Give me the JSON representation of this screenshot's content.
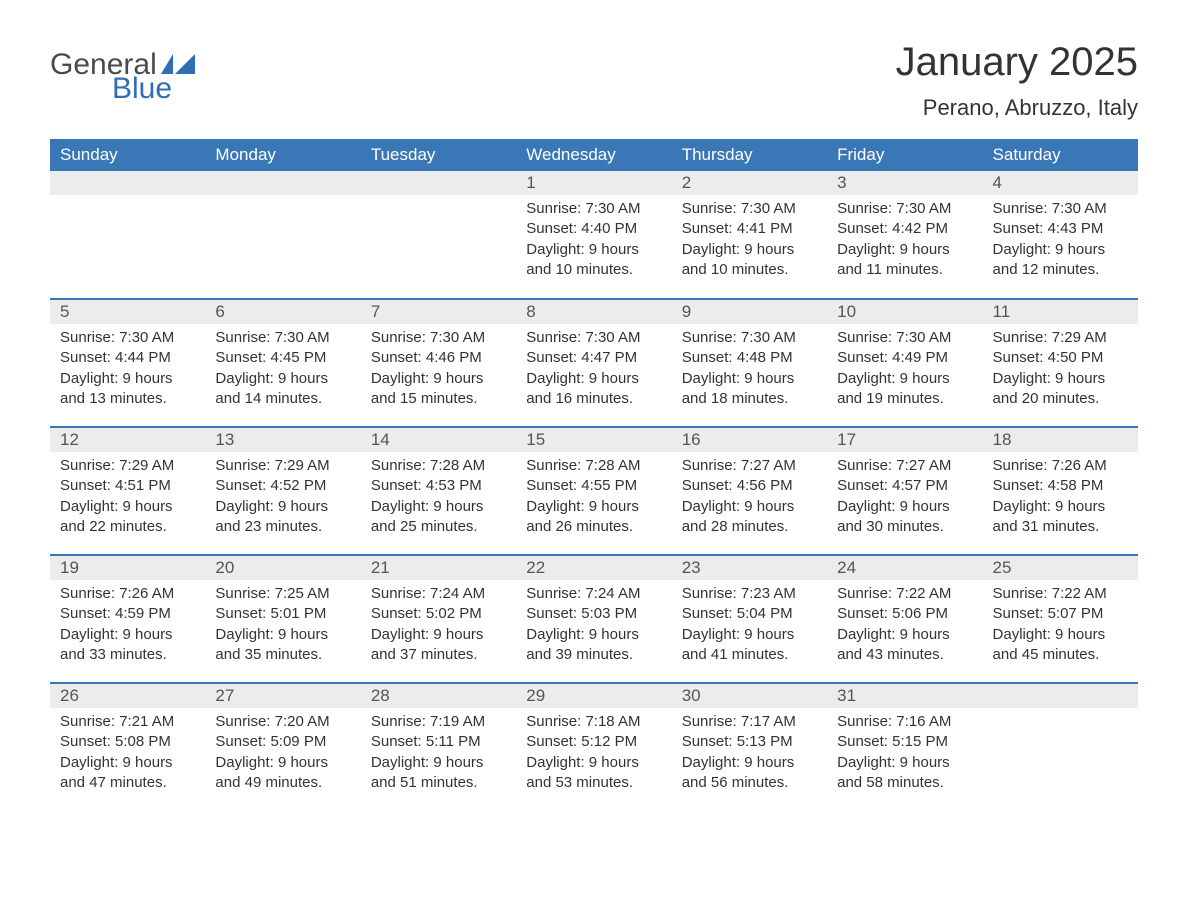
{
  "logo": {
    "text1": "General",
    "text2": "Blue"
  },
  "title": "January 2025",
  "location": "Perano, Abruzzo, Italy",
  "colors": {
    "header_bg": "#3a77b6",
    "header_text": "#ffffff",
    "daynum_bg": "#ececec",
    "border": "#3a77b6",
    "logo_blue": "#2f6eb0",
    "logo_gray": "#4a4a4a"
  },
  "weekdays": [
    "Sunday",
    "Monday",
    "Tuesday",
    "Wednesday",
    "Thursday",
    "Friday",
    "Saturday"
  ],
  "weeks": [
    [
      null,
      null,
      null,
      {
        "d": "1",
        "sr": "Sunrise: 7:30 AM",
        "ss": "Sunset: 4:40 PM",
        "dl1": "Daylight: 9 hours",
        "dl2": "and 10 minutes."
      },
      {
        "d": "2",
        "sr": "Sunrise: 7:30 AM",
        "ss": "Sunset: 4:41 PM",
        "dl1": "Daylight: 9 hours",
        "dl2": "and 10 minutes."
      },
      {
        "d": "3",
        "sr": "Sunrise: 7:30 AM",
        "ss": "Sunset: 4:42 PM",
        "dl1": "Daylight: 9 hours",
        "dl2": "and 11 minutes."
      },
      {
        "d": "4",
        "sr": "Sunrise: 7:30 AM",
        "ss": "Sunset: 4:43 PM",
        "dl1": "Daylight: 9 hours",
        "dl2": "and 12 minutes."
      }
    ],
    [
      {
        "d": "5",
        "sr": "Sunrise: 7:30 AM",
        "ss": "Sunset: 4:44 PM",
        "dl1": "Daylight: 9 hours",
        "dl2": "and 13 minutes."
      },
      {
        "d": "6",
        "sr": "Sunrise: 7:30 AM",
        "ss": "Sunset: 4:45 PM",
        "dl1": "Daylight: 9 hours",
        "dl2": "and 14 minutes."
      },
      {
        "d": "7",
        "sr": "Sunrise: 7:30 AM",
        "ss": "Sunset: 4:46 PM",
        "dl1": "Daylight: 9 hours",
        "dl2": "and 15 minutes."
      },
      {
        "d": "8",
        "sr": "Sunrise: 7:30 AM",
        "ss": "Sunset: 4:47 PM",
        "dl1": "Daylight: 9 hours",
        "dl2": "and 16 minutes."
      },
      {
        "d": "9",
        "sr": "Sunrise: 7:30 AM",
        "ss": "Sunset: 4:48 PM",
        "dl1": "Daylight: 9 hours",
        "dl2": "and 18 minutes."
      },
      {
        "d": "10",
        "sr": "Sunrise: 7:30 AM",
        "ss": "Sunset: 4:49 PM",
        "dl1": "Daylight: 9 hours",
        "dl2": "and 19 minutes."
      },
      {
        "d": "11",
        "sr": "Sunrise: 7:29 AM",
        "ss": "Sunset: 4:50 PM",
        "dl1": "Daylight: 9 hours",
        "dl2": "and 20 minutes."
      }
    ],
    [
      {
        "d": "12",
        "sr": "Sunrise: 7:29 AM",
        "ss": "Sunset: 4:51 PM",
        "dl1": "Daylight: 9 hours",
        "dl2": "and 22 minutes."
      },
      {
        "d": "13",
        "sr": "Sunrise: 7:29 AM",
        "ss": "Sunset: 4:52 PM",
        "dl1": "Daylight: 9 hours",
        "dl2": "and 23 minutes."
      },
      {
        "d": "14",
        "sr": "Sunrise: 7:28 AM",
        "ss": "Sunset: 4:53 PM",
        "dl1": "Daylight: 9 hours",
        "dl2": "and 25 minutes."
      },
      {
        "d": "15",
        "sr": "Sunrise: 7:28 AM",
        "ss": "Sunset: 4:55 PM",
        "dl1": "Daylight: 9 hours",
        "dl2": "and 26 minutes."
      },
      {
        "d": "16",
        "sr": "Sunrise: 7:27 AM",
        "ss": "Sunset: 4:56 PM",
        "dl1": "Daylight: 9 hours",
        "dl2": "and 28 minutes."
      },
      {
        "d": "17",
        "sr": "Sunrise: 7:27 AM",
        "ss": "Sunset: 4:57 PM",
        "dl1": "Daylight: 9 hours",
        "dl2": "and 30 minutes."
      },
      {
        "d": "18",
        "sr": "Sunrise: 7:26 AM",
        "ss": "Sunset: 4:58 PM",
        "dl1": "Daylight: 9 hours",
        "dl2": "and 31 minutes."
      }
    ],
    [
      {
        "d": "19",
        "sr": "Sunrise: 7:26 AM",
        "ss": "Sunset: 4:59 PM",
        "dl1": "Daylight: 9 hours",
        "dl2": "and 33 minutes."
      },
      {
        "d": "20",
        "sr": "Sunrise: 7:25 AM",
        "ss": "Sunset: 5:01 PM",
        "dl1": "Daylight: 9 hours",
        "dl2": "and 35 minutes."
      },
      {
        "d": "21",
        "sr": "Sunrise: 7:24 AM",
        "ss": "Sunset: 5:02 PM",
        "dl1": "Daylight: 9 hours",
        "dl2": "and 37 minutes."
      },
      {
        "d": "22",
        "sr": "Sunrise: 7:24 AM",
        "ss": "Sunset: 5:03 PM",
        "dl1": "Daylight: 9 hours",
        "dl2": "and 39 minutes."
      },
      {
        "d": "23",
        "sr": "Sunrise: 7:23 AM",
        "ss": "Sunset: 5:04 PM",
        "dl1": "Daylight: 9 hours",
        "dl2": "and 41 minutes."
      },
      {
        "d": "24",
        "sr": "Sunrise: 7:22 AM",
        "ss": "Sunset: 5:06 PM",
        "dl1": "Daylight: 9 hours",
        "dl2": "and 43 minutes."
      },
      {
        "d": "25",
        "sr": "Sunrise: 7:22 AM",
        "ss": "Sunset: 5:07 PM",
        "dl1": "Daylight: 9 hours",
        "dl2": "and 45 minutes."
      }
    ],
    [
      {
        "d": "26",
        "sr": "Sunrise: 7:21 AM",
        "ss": "Sunset: 5:08 PM",
        "dl1": "Daylight: 9 hours",
        "dl2": "and 47 minutes."
      },
      {
        "d": "27",
        "sr": "Sunrise: 7:20 AM",
        "ss": "Sunset: 5:09 PM",
        "dl1": "Daylight: 9 hours",
        "dl2": "and 49 minutes."
      },
      {
        "d": "28",
        "sr": "Sunrise: 7:19 AM",
        "ss": "Sunset: 5:11 PM",
        "dl1": "Daylight: 9 hours",
        "dl2": "and 51 minutes."
      },
      {
        "d": "29",
        "sr": "Sunrise: 7:18 AM",
        "ss": "Sunset: 5:12 PM",
        "dl1": "Daylight: 9 hours",
        "dl2": "and 53 minutes."
      },
      {
        "d": "30",
        "sr": "Sunrise: 7:17 AM",
        "ss": "Sunset: 5:13 PM",
        "dl1": "Daylight: 9 hours",
        "dl2": "and 56 minutes."
      },
      {
        "d": "31",
        "sr": "Sunrise: 7:16 AM",
        "ss": "Sunset: 5:15 PM",
        "dl1": "Daylight: 9 hours",
        "dl2": "and 58 minutes."
      },
      null
    ]
  ]
}
